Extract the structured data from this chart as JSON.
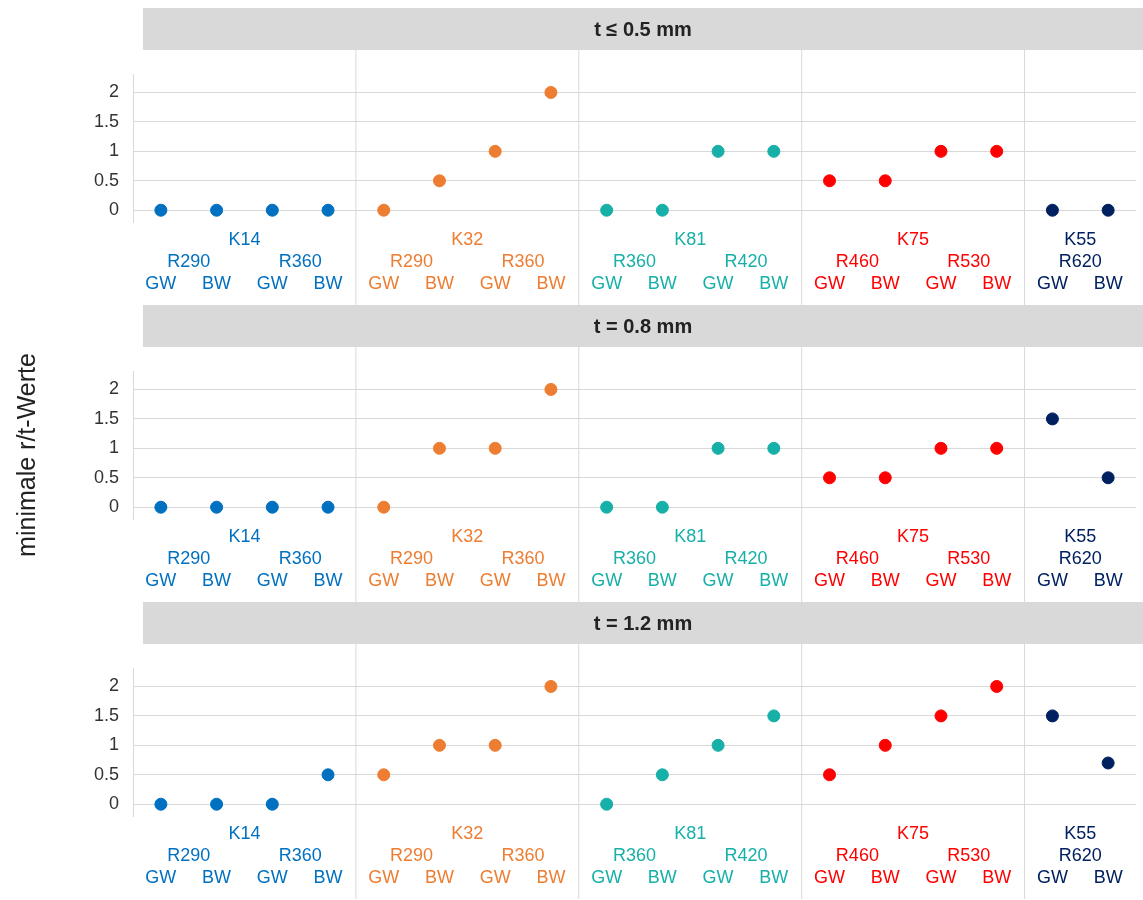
{
  "chart_data": [
    {
      "type": "scatter",
      "title": "t ≤ 0.5 mm",
      "categories": [
        "GW",
        "BW",
        "GW",
        "BW",
        "GW",
        "BW",
        "GW",
        "BW",
        "GW",
        "BW",
        "GW",
        "BW",
        "GW",
        "BW",
        "GW",
        "BW",
        "GW",
        "BW"
      ],
      "annotations": [
        "R290",
        "R360",
        "R290",
        "R360",
        "R360",
        "R420",
        "R460",
        "R530",
        "R620"
      ],
      "ylim": [
        -0.2,
        2.3
      ],
      "yticks": [
        0,
        0.5,
        1,
        1.5,
        2
      ],
      "grid": "y",
      "marker": "circle",
      "series": [
        {
          "name": "K14",
          "color": "#0070c0",
          "values": [
            0,
            0,
            0,
            0,
            null,
            null,
            null,
            null,
            null,
            null,
            null,
            null,
            null,
            null,
            null,
            null,
            null,
            null
          ]
        },
        {
          "name": "K32",
          "color": "#ed7d31",
          "values": [
            null,
            null,
            null,
            null,
            0,
            0.5,
            1,
            2,
            null,
            null,
            null,
            null,
            null,
            null,
            null,
            null,
            null,
            null
          ]
        },
        {
          "name": "K81",
          "color": "#17b0a8",
          "values": [
            null,
            null,
            null,
            null,
            null,
            null,
            null,
            null,
            0,
            0,
            1,
            1,
            null,
            null,
            null,
            null,
            null,
            null
          ]
        },
        {
          "name": "K75",
          "color": "#ff0000",
          "values": [
            null,
            null,
            null,
            null,
            null,
            null,
            null,
            null,
            null,
            null,
            null,
            null,
            0.5,
            0.5,
            1,
            1,
            null,
            null
          ]
        },
        {
          "name": "K55",
          "color": "#002060",
          "values": [
            null,
            null,
            null,
            null,
            null,
            null,
            null,
            null,
            null,
            null,
            null,
            null,
            null,
            null,
            null,
            null,
            0,
            0
          ]
        }
      ]
    },
    {
      "type": "scatter",
      "title": "t = 0.8 mm",
      "ylabel": "minimale r/t-Werte",
      "categories": [
        "GW",
        "BW",
        "GW",
        "BW",
        "GW",
        "BW",
        "GW",
        "BW",
        "GW",
        "BW",
        "GW",
        "BW",
        "GW",
        "BW",
        "GW",
        "BW",
        "GW",
        "BW"
      ],
      "annotations": [
        "R290",
        "R360",
        "R290",
        "R360",
        "R360",
        "R420",
        "R460",
        "R530",
        "R620"
      ],
      "ylim": [
        -0.2,
        2.3
      ],
      "yticks": [
        0,
        0.5,
        1,
        1.5,
        2
      ],
      "grid": "y",
      "marker": "circle",
      "series": [
        {
          "name": "K14",
          "color": "#0070c0",
          "values": [
            0,
            0,
            0,
            0,
            null,
            null,
            null,
            null,
            null,
            null,
            null,
            null,
            null,
            null,
            null,
            null,
            null,
            null
          ]
        },
        {
          "name": "K32",
          "color": "#ed7d31",
          "values": [
            null,
            null,
            null,
            null,
            0,
            1,
            1,
            2,
            null,
            null,
            null,
            null,
            null,
            null,
            null,
            null,
            null,
            null
          ]
        },
        {
          "name": "K81",
          "color": "#17b0a8",
          "values": [
            null,
            null,
            null,
            null,
            null,
            null,
            null,
            null,
            0,
            0,
            1,
            1,
            null,
            null,
            null,
            null,
            null,
            null
          ]
        },
        {
          "name": "K75",
          "color": "#ff0000",
          "values": [
            null,
            null,
            null,
            null,
            null,
            null,
            null,
            null,
            null,
            null,
            null,
            null,
            0.5,
            0.5,
            1,
            1,
            null,
            null
          ]
        },
        {
          "name": "K55",
          "color": "#002060",
          "values": [
            null,
            null,
            null,
            null,
            null,
            null,
            null,
            null,
            null,
            null,
            null,
            null,
            null,
            null,
            null,
            null,
            1.5,
            0.5
          ]
        }
      ]
    },
    {
      "type": "scatter",
      "title": "t = 1.2 mm",
      "categories": [
        "GW",
        "BW",
        "GW",
        "BW",
        "GW",
        "BW",
        "GW",
        "BW",
        "GW",
        "BW",
        "GW",
        "BW",
        "GW",
        "BW",
        "GW",
        "BW",
        "GW",
        "BW"
      ],
      "annotations": [
        "R290",
        "R360",
        "R290",
        "R360",
        "R360",
        "R420",
        "R460",
        "R530",
        "R620"
      ],
      "ylim": [
        -0.2,
        2.3
      ],
      "yticks": [
        0,
        0.5,
        1,
        1.5,
        2
      ],
      "grid": "y",
      "marker": "circle",
      "series": [
        {
          "name": "K14",
          "color": "#0070c0",
          "values": [
            0,
            0,
            0,
            0.5,
            null,
            null,
            null,
            null,
            null,
            null,
            null,
            null,
            null,
            null,
            null,
            null,
            null,
            null
          ]
        },
        {
          "name": "K32",
          "color": "#ed7d31",
          "values": [
            null,
            null,
            null,
            null,
            0.5,
            1,
            1,
            2,
            null,
            null,
            null,
            null,
            null,
            null,
            null,
            null,
            null,
            null
          ]
        },
        {
          "name": "K81",
          "color": "#17b0a8",
          "values": [
            null,
            null,
            null,
            null,
            null,
            null,
            null,
            null,
            0,
            0.5,
            1,
            1.5,
            null,
            null,
            null,
            null,
            null,
            null
          ]
        },
        {
          "name": "K75",
          "color": "#ff0000",
          "values": [
            null,
            null,
            null,
            null,
            null,
            null,
            null,
            null,
            null,
            null,
            null,
            null,
            0.5,
            1,
            1.5,
            2,
            null,
            null
          ]
        },
        {
          "name": "K55",
          "color": "#002060",
          "values": [
            null,
            null,
            null,
            null,
            null,
            null,
            null,
            null,
            null,
            null,
            null,
            null,
            null,
            null,
            null,
            null,
            1.5,
            0.7
          ]
        }
      ]
    }
  ]
}
